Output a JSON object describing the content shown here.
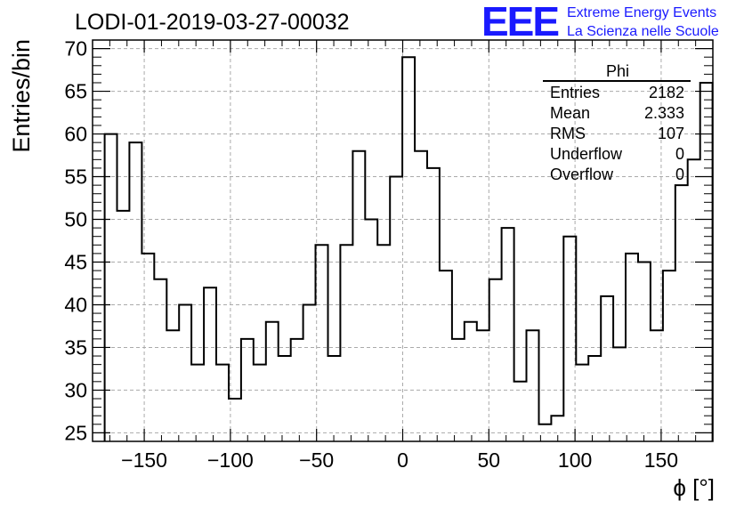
{
  "chart_data": {
    "type": "bar",
    "title": "LODI-01-2019-03-27-00032",
    "xlabel": "ϕ [°]",
    "ylabel": "Entries/bin",
    "xlim": [
      -180,
      180
    ],
    "ylim": [
      24,
      71
    ],
    "x_ticks": [
      -150,
      -100,
      -50,
      0,
      50,
      100,
      150
    ],
    "y_ticks": [
      25,
      30,
      35,
      40,
      45,
      50,
      55,
      60,
      65,
      70
    ],
    "grid": true,
    "bin_width": 7.2,
    "bin_low_edges_start": -173,
    "values": [
      60,
      51,
      59,
      46,
      43,
      37,
      40,
      33,
      42,
      33,
      29,
      36,
      33,
      38,
      34,
      36,
      40,
      47,
      34,
      47,
      58,
      50,
      47,
      55,
      69,
      58,
      56,
      44,
      36,
      38,
      37,
      43,
      49,
      31,
      37,
      26,
      27,
      48,
      33,
      34,
      41,
      35,
      46,
      45,
      37,
      44,
      54,
      57,
      66
    ],
    "color": "#000000",
    "stats_box": {
      "title": "Phi",
      "rows": [
        {
          "label": "Entries",
          "value": "2182"
        },
        {
          "label": "Mean",
          "value": "2.333"
        },
        {
          "label": "RMS",
          "value": "107"
        },
        {
          "label": "Underflow",
          "value": "0"
        },
        {
          "label": "Overflow",
          "value": "0"
        }
      ]
    }
  },
  "logo": {
    "mark": "EEE",
    "line1": "Extreme Energy Events",
    "line2": "La Scienza nelle Scuole",
    "color": "#1a1aff"
  }
}
